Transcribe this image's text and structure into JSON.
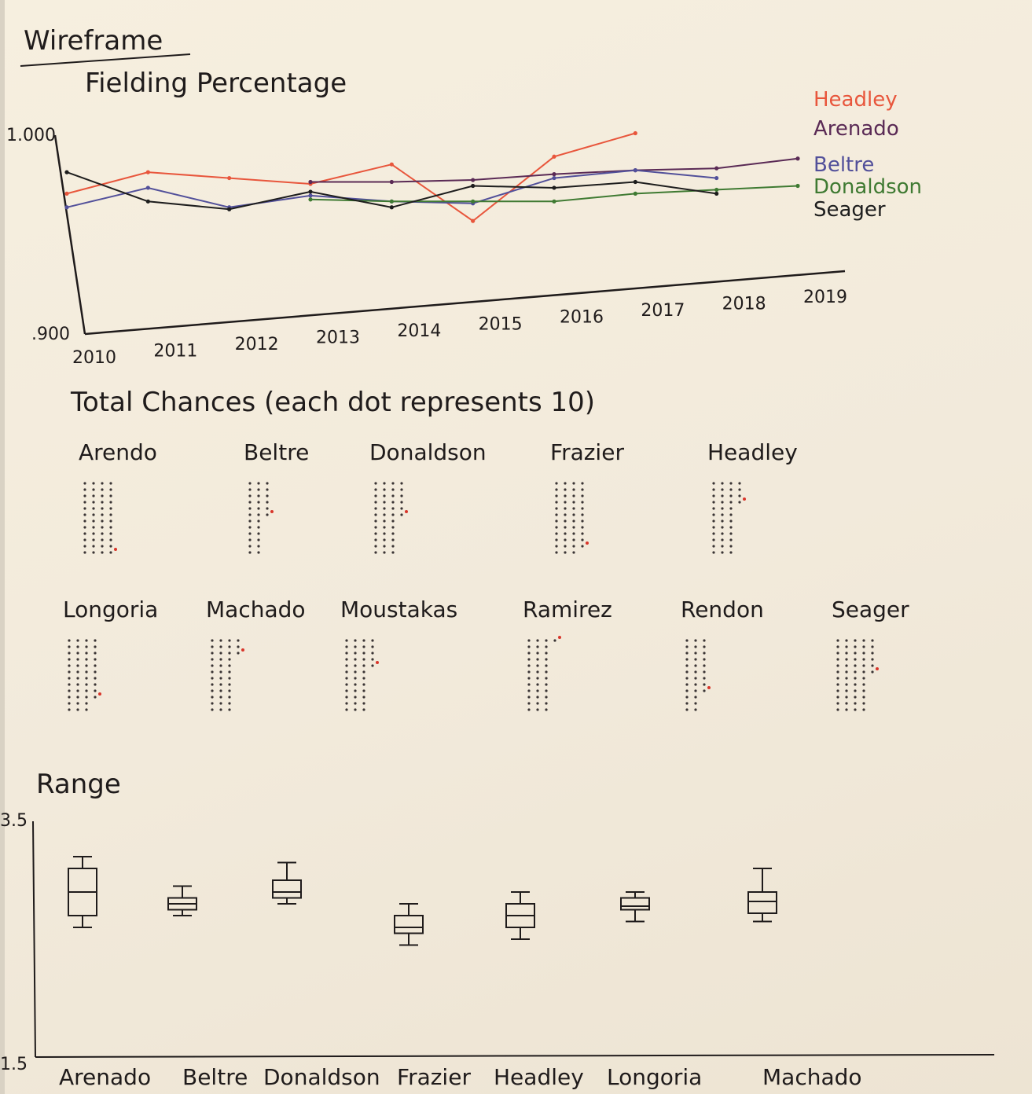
{
  "page": {
    "heading": "Wireframe"
  },
  "fielding": {
    "title": "Fielding Percentage",
    "y_top_label": "1.000",
    "y_bottom_label": ".900"
  },
  "chances": {
    "title": "Total Chances  (each dot represents 10)"
  },
  "range": {
    "title": "Range",
    "y_top_label": "3.5",
    "y_bottom_label": "1.5"
  },
  "colors": {
    "Headley": "#e8563c",
    "Arenado": "#5a2a55",
    "Beltre": "#52509a",
    "Donaldson": "#3f7a32",
    "Seager": "#1d1d1d",
    "ink": "#1f1b1b",
    "highlight": "#d8352a"
  },
  "chart_data": [
    {
      "type": "line",
      "title": "Fielding Percentage",
      "x": [
        "2010",
        "2011",
        "2012",
        "2013",
        "2014",
        "2015",
        "2016",
        "2017",
        "2018",
        "2019"
      ],
      "ylim": [
        0.9,
        1.0
      ],
      "grid": false,
      "legend": "right",
      "series": [
        {
          "name": "Headley",
          "values": [
            0.97,
            0.981,
            0.978,
            0.975,
            0.985,
            0.956,
            0.989,
            1.001,
            null,
            null
          ]
        },
        {
          "name": "Arenado",
          "values": [
            null,
            null,
            null,
            0.976,
            0.976,
            0.977,
            0.98,
            0.982,
            0.983,
            0.988
          ]
        },
        {
          "name": "Beltre",
          "values": [
            0.963,
            0.973,
            0.963,
            0.969,
            0.966,
            0.965,
            0.978,
            0.982,
            0.978,
            null
          ]
        },
        {
          "name": "Donaldson",
          "values": [
            null,
            null,
            null,
            0.967,
            0.966,
            0.966,
            0.966,
            0.97,
            0.972,
            0.974
          ]
        },
        {
          "name": "Seager",
          "values": [
            0.981,
            0.966,
            0.962,
            0.971,
            0.963,
            0.974,
            0.973,
            0.976,
            0.97,
            null
          ]
        }
      ]
    },
    {
      "type": "scatter",
      "title": "Total Chances  (each dot represents 10)",
      "categories": [
        "Arendo",
        "Beltre",
        "Donaldson",
        "Frazier",
        "Headley",
        "Longoria",
        "Machado",
        "Moustakas",
        "Ramirez",
        "Rendon",
        "Seager"
      ],
      "values": [
        48,
        30,
        42,
        47,
        40,
        46,
        39,
        41,
        37,
        33,
        54
      ]
    },
    {
      "type": "box",
      "title": "Range",
      "categories": [
        "Arenado",
        "Beltre",
        "Donaldson",
        "Frazier",
        "Headley",
        "Longoria",
        "Machado"
      ],
      "ylim": [
        1.5,
        3.5
      ],
      "grid": false,
      "boxes": [
        {
          "min": 2.6,
          "q1": 2.7,
          "median": 2.9,
          "q3": 3.1,
          "max": 3.2
        },
        {
          "min": 2.7,
          "q1": 2.75,
          "median": 2.8,
          "q3": 2.85,
          "max": 2.95
        },
        {
          "min": 2.8,
          "q1": 2.85,
          "median": 2.9,
          "q3": 3.0,
          "max": 3.15
        },
        {
          "min": 2.45,
          "q1": 2.55,
          "median": 2.6,
          "q3": 2.7,
          "max": 2.8
        },
        {
          "min": 2.5,
          "q1": 2.6,
          "median": 2.7,
          "q3": 2.8,
          "max": 2.9
        },
        {
          "min": 2.65,
          "q1": 2.75,
          "median": 2.78,
          "q3": 2.85,
          "max": 2.9
        },
        {
          "min": 2.65,
          "q1": 2.72,
          "median": 2.82,
          "q3": 2.9,
          "max": 3.1
        }
      ]
    }
  ]
}
